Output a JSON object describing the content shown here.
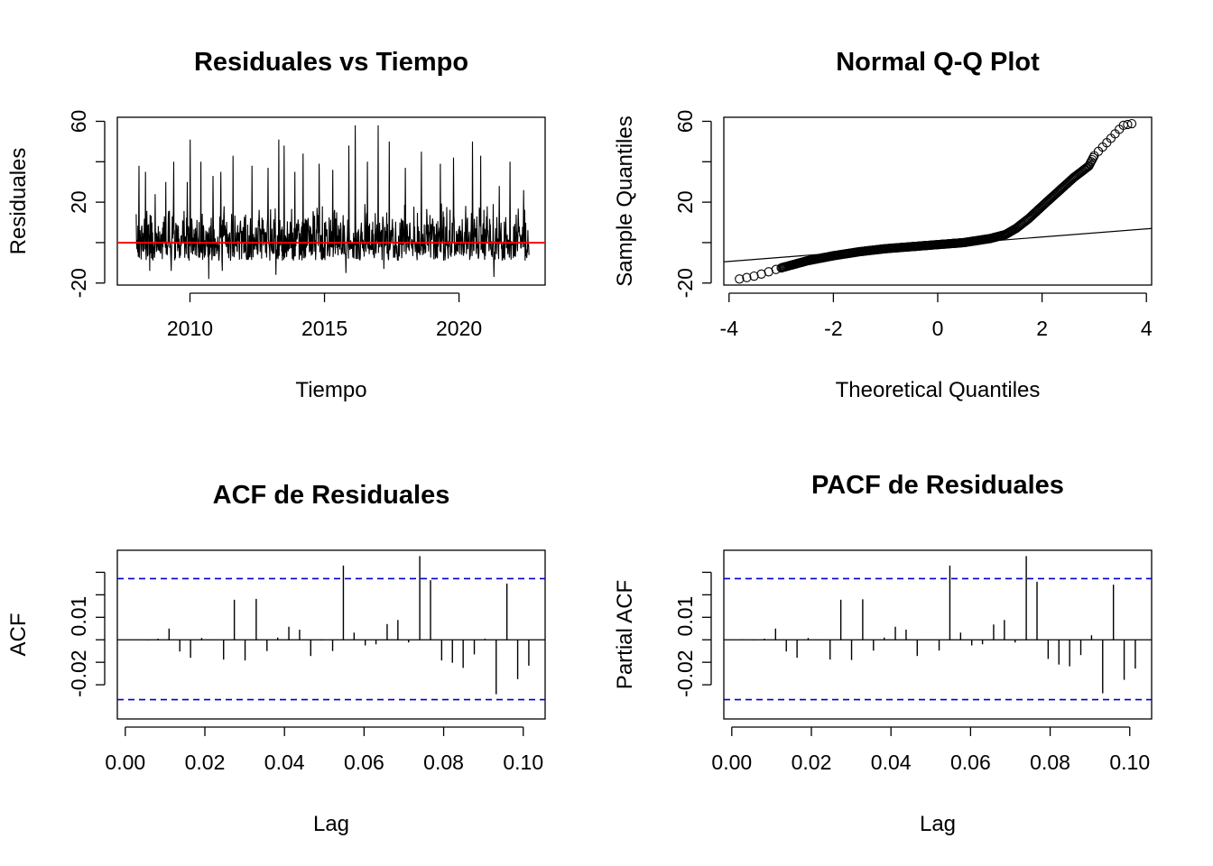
{
  "chart_data": [
    {
      "type": "line",
      "title": "Residuales vs Tiempo",
      "xlabel": "Tiempo",
      "ylabel": "Residuales",
      "xlim": [
        2007.3,
        2023.2
      ],
      "ylim": [
        -21,
        62
      ],
      "xticks": [
        2010,
        2015,
        2020
      ],
      "xtick_labels": [
        "2010",
        "2015",
        "2020"
      ],
      "yticks": [
        -20,
        0,
        20,
        40,
        60
      ],
      "ytick_labels": [
        "-20",
        "20",
        "60"
      ],
      "ytick_label_values": [
        -20,
        20,
        60
      ],
      "series_range": [
        2008.0,
        2022.6
      ],
      "zero_line": {
        "y": 0,
        "color": "#ff0000"
      },
      "spikes": [
        {
          "x": 2008.1,
          "y": 38
        },
        {
          "x": 2008.35,
          "y": 35
        },
        {
          "x": 2008.7,
          "y": 24
        },
        {
          "x": 2009.1,
          "y": 30
        },
        {
          "x": 2009.4,
          "y": 40
        },
        {
          "x": 2009.9,
          "y": 30
        },
        {
          "x": 2010.0,
          "y": 51
        },
        {
          "x": 2010.4,
          "y": 40
        },
        {
          "x": 2010.85,
          "y": 33
        },
        {
          "x": 2011.15,
          "y": 35
        },
        {
          "x": 2011.6,
          "y": 43
        },
        {
          "x": 2012.3,
          "y": 38
        },
        {
          "x": 2012.9,
          "y": 37
        },
        {
          "x": 2013.3,
          "y": 51
        },
        {
          "x": 2013.5,
          "y": 48
        },
        {
          "x": 2013.9,
          "y": 35
        },
        {
          "x": 2014.2,
          "y": 44
        },
        {
          "x": 2014.8,
          "y": 39
        },
        {
          "x": 2015.3,
          "y": 36
        },
        {
          "x": 2015.9,
          "y": 48
        },
        {
          "x": 2016.15,
          "y": 58
        },
        {
          "x": 2016.6,
          "y": 40
        },
        {
          "x": 2017.0,
          "y": 58
        },
        {
          "x": 2017.4,
          "y": 50
        },
        {
          "x": 2018.0,
          "y": 37
        },
        {
          "x": 2018.6,
          "y": 45
        },
        {
          "x": 2019.3,
          "y": 39
        },
        {
          "x": 2019.8,
          "y": 42
        },
        {
          "x": 2020.5,
          "y": 50
        },
        {
          "x": 2020.8,
          "y": 43
        },
        {
          "x": 2021.5,
          "y": 28
        },
        {
          "x": 2021.9,
          "y": 40
        },
        {
          "x": 2022.4,
          "y": 26
        }
      ],
      "troughs": [
        {
          "x": 2008.5,
          "y": -14
        },
        {
          "x": 2009.3,
          "y": -14
        },
        {
          "x": 2010.7,
          "y": -18
        },
        {
          "x": 2011.2,
          "y": -14
        },
        {
          "x": 2013.2,
          "y": -16
        },
        {
          "x": 2015.8,
          "y": -15
        },
        {
          "x": 2017.2,
          "y": -13
        },
        {
          "x": 2021.3,
          "y": -17
        }
      ],
      "noise": {
        "typical_max": 20,
        "typical_min": -9,
        "seed": 7
      }
    },
    {
      "type": "scatter",
      "title": "Normal Q-Q Plot",
      "xlabel": "Theoretical Quantiles",
      "ylabel": "Sample Quantiles",
      "xlim": [
        -4.1,
        4.1
      ],
      "ylim": [
        -21,
        62
      ],
      "xticks": [
        -4,
        -2,
        0,
        2,
        4
      ],
      "xtick_labels": [
        "-4",
        "-2",
        "0",
        "2",
        "4"
      ],
      "yticks": [
        -20,
        0,
        20,
        40,
        60
      ],
      "ytick_labels": [
        "-20",
        "20",
        "60"
      ],
      "ytick_label_values": [
        -20,
        20,
        60
      ],
      "reference_line": {
        "x1": -4.1,
        "y1": -9.5,
        "x2": 4.1,
        "y2": 7
      },
      "curve_knots": [
        {
          "x": -3.8,
          "y": -18
        },
        {
          "x": -3.5,
          "y": -16.5
        },
        {
          "x": -3.0,
          "y": -12.5
        },
        {
          "x": -2.5,
          "y": -9
        },
        {
          "x": -2.0,
          "y": -6.5
        },
        {
          "x": -1.5,
          "y": -4.5
        },
        {
          "x": -1.0,
          "y": -3
        },
        {
          "x": -0.5,
          "y": -2
        },
        {
          "x": 0.0,
          "y": -1
        },
        {
          "x": 0.5,
          "y": 0
        },
        {
          "x": 1.0,
          "y": 2
        },
        {
          "x": 1.3,
          "y": 4
        },
        {
          "x": 1.5,
          "y": 7
        },
        {
          "x": 1.75,
          "y": 12
        },
        {
          "x": 2.0,
          "y": 18
        },
        {
          "x": 2.3,
          "y": 25
        },
        {
          "x": 2.6,
          "y": 32
        },
        {
          "x": 2.9,
          "y": 38
        },
        {
          "x": 3.0,
          "y": 43
        },
        {
          "x": 3.3,
          "y": 51
        },
        {
          "x": 3.55,
          "y": 58
        },
        {
          "x": 3.75,
          "y": 59
        }
      ],
      "marker": "open-circle"
    },
    {
      "type": "bar",
      "title": "ACF de Residuales",
      "xlabel": "Lag",
      "ylabel": "ACF",
      "xlim": [
        -0.002,
        0.1055
      ],
      "ylim": [
        -0.0352,
        0.0398
      ],
      "xticks": [
        0.0,
        0.02,
        0.04,
        0.06,
        0.08,
        0.1
      ],
      "xtick_labels": [
        "0.00",
        "0.02",
        "0.04",
        "0.06",
        "0.08",
        "0.10"
      ],
      "yticks": [
        -0.02,
        -0.01,
        0.0,
        0.01,
        0.02,
        0.03
      ],
      "ytick_labels": [
        "-0.02",
        "0.01"
      ],
      "ytick_label_values": [
        -0.015,
        0.0105
      ],
      "confidence_band": {
        "upper": 0.0272,
        "lower": -0.0266,
        "color": "#0000cc"
      },
      "lags": [
        0.0027,
        0.0055,
        0.0082,
        0.011,
        0.0137,
        0.0164,
        0.0192,
        0.0219,
        0.0247,
        0.0274,
        0.0301,
        0.0329,
        0.0356,
        0.0383,
        0.0411,
        0.0438,
        0.0466,
        0.0493,
        0.0521,
        0.0548,
        0.0575,
        0.0603,
        0.063,
        0.0658,
        0.0685,
        0.0712,
        0.074,
        0.0767,
        0.0795,
        0.0822,
        0.0849,
        0.0877,
        0.0904,
        0.0932,
        0.0959,
        0.0986,
        0.1014
      ],
      "values": [
        0.0002,
        -0.0003,
        0.0005,
        0.005,
        -0.0052,
        -0.008,
        0.0008,
        -0.0002,
        -0.0088,
        0.0178,
        -0.0092,
        0.0182,
        -0.005,
        0.001,
        0.0058,
        0.0045,
        -0.0072,
        -0.0003,
        -0.005,
        0.033,
        0.0032,
        -0.0025,
        -0.002,
        0.007,
        0.0088,
        -0.0012,
        0.0372,
        0.0265,
        -0.0092,
        -0.0102,
        -0.0125,
        -0.0065,
        0.0005,
        -0.0242,
        0.025,
        -0.0175,
        -0.0115
      ]
    },
    {
      "type": "bar",
      "title": "PACF de Residuales",
      "xlabel": "Lag",
      "ylabel": "Partial ACF",
      "xlim": [
        -0.002,
        0.1055
      ],
      "ylim": [
        -0.0352,
        0.0398
      ],
      "xticks": [
        0.0,
        0.02,
        0.04,
        0.06,
        0.08,
        0.1
      ],
      "xtick_labels": [
        "0.00",
        "0.02",
        "0.04",
        "0.06",
        "0.08",
        "0.10"
      ],
      "yticks": [
        -0.02,
        -0.01,
        0.0,
        0.01,
        0.02,
        0.03
      ],
      "ytick_labels": [
        "-0.02",
        "0.01"
      ],
      "ytick_label_values": [
        -0.015,
        0.0105
      ],
      "confidence_band": {
        "upper": 0.0272,
        "lower": -0.0266,
        "color": "#0000cc"
      },
      "lags": [
        0.0027,
        0.0055,
        0.0082,
        0.011,
        0.0137,
        0.0164,
        0.0192,
        0.0219,
        0.0247,
        0.0274,
        0.0301,
        0.0329,
        0.0356,
        0.0383,
        0.0411,
        0.0438,
        0.0466,
        0.0493,
        0.0521,
        0.0548,
        0.0575,
        0.0603,
        0.063,
        0.0658,
        0.0685,
        0.0712,
        0.074,
        0.0767,
        0.0795,
        0.0822,
        0.0849,
        0.0877,
        0.0904,
        0.0932,
        0.0959,
        0.0986,
        0.1014
      ],
      "values": [
        0.0002,
        -0.0003,
        0.0005,
        0.005,
        -0.0052,
        -0.008,
        0.0008,
        -0.0002,
        -0.0088,
        0.0178,
        -0.009,
        0.018,
        -0.0048,
        0.001,
        0.0058,
        0.0045,
        -0.0072,
        -0.0003,
        -0.0048,
        0.033,
        0.0032,
        -0.0025,
        -0.002,
        0.0068,
        0.0088,
        -0.0012,
        0.0372,
        0.0258,
        -0.0085,
        -0.011,
        -0.0118,
        -0.0068,
        0.002,
        -0.0238,
        0.0245,
        -0.0178,
        -0.0128
      ]
    }
  ]
}
